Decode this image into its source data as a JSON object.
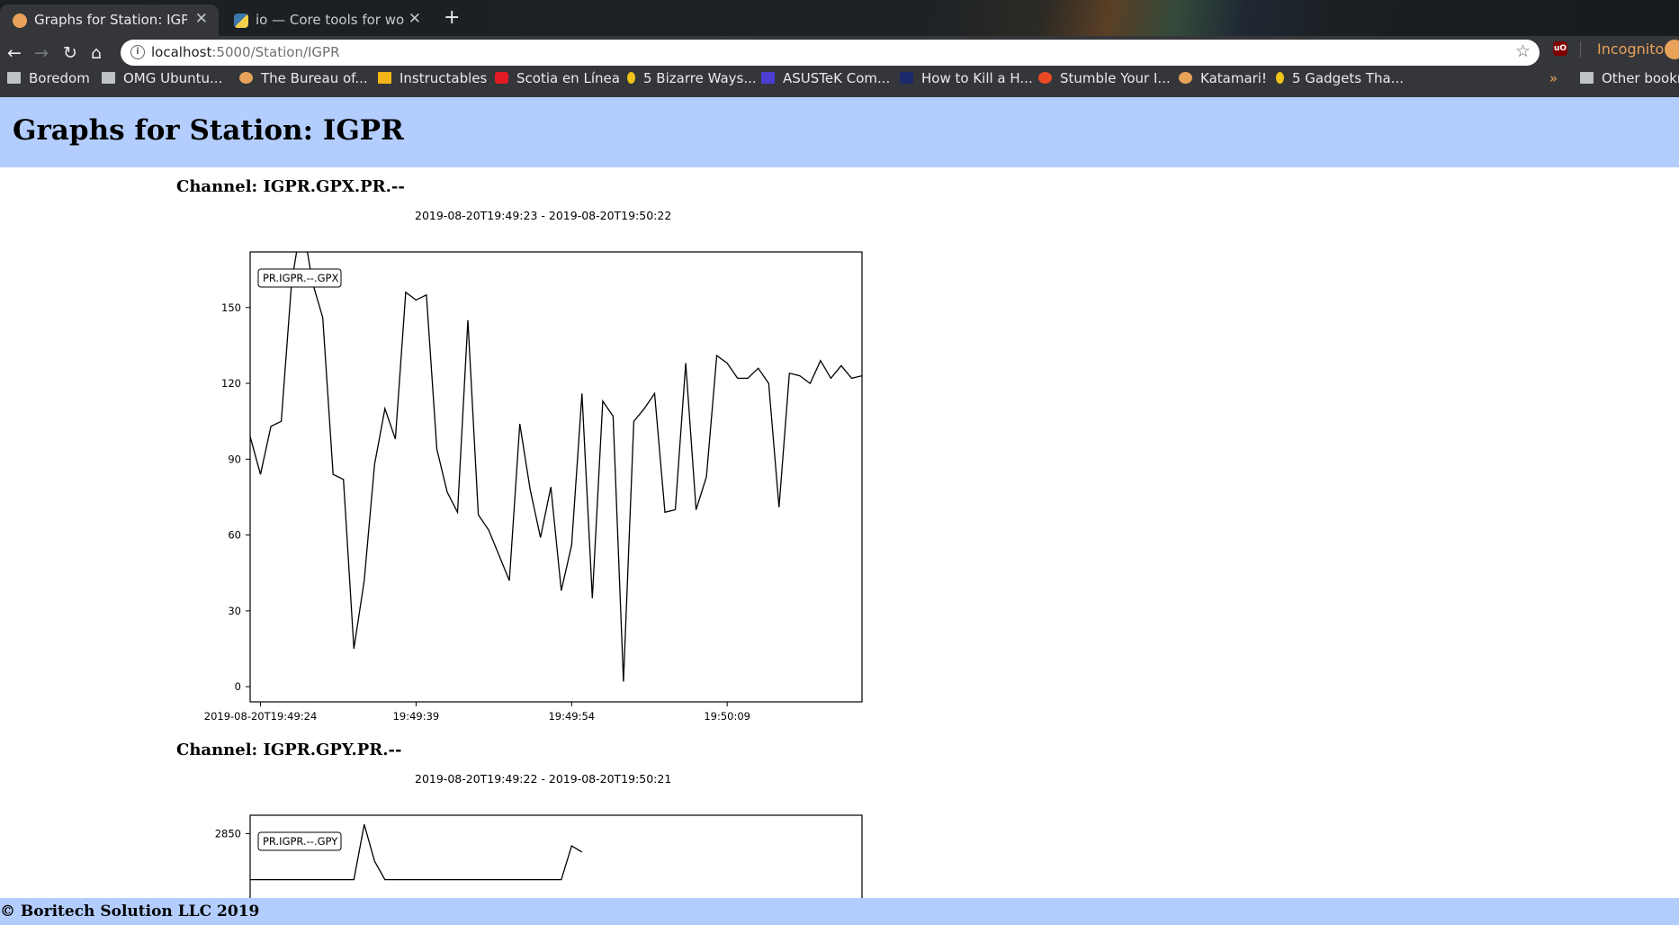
{
  "browser": {
    "tabs": [
      {
        "title": "Graphs for Station: IGPR",
        "active": true
      },
      {
        "title": "io — Core tools for workin",
        "active": false
      }
    ],
    "url_host": "localhost",
    "url_path": ":5000/Station/IGPR",
    "incognito_label": "Incognito",
    "bookmarks": [
      {
        "label": "Boredom",
        "icon": "folder-icon"
      },
      {
        "label": "OMG Ubuntu...",
        "icon": "folder-icon"
      },
      {
        "label": "The Bureau of...",
        "icon": "globe-icon"
      },
      {
        "label": "Instructables",
        "icon": "robot-icon"
      },
      {
        "label": "Scotia en Línea",
        "icon": "scotia-icon"
      },
      {
        "label": "5 Bizarre Ways...",
        "icon": "cracked-icon"
      },
      {
        "label": "ASUSTeK Com...",
        "icon": "asus-icon"
      },
      {
        "label": "How to Kill a H...",
        "icon": "dh-icon"
      },
      {
        "label": "Stumble Your I...",
        "icon": "stumbleupon-icon"
      },
      {
        "label": "Katamari!",
        "icon": "globe-icon"
      },
      {
        "label": "5 Gadgets Tha...",
        "icon": "cracked-icon"
      }
    ],
    "other_bookmarks": "Other bookm"
  },
  "page": {
    "title": "Graphs for Station: IGPR",
    "footer": "© Boritech Solution LLC 2019"
  },
  "channels": [
    {
      "heading": "Channel: IGPR.GPX.PR.--",
      "time_range": "2019-08-20T19:49:23  -  2019-08-20T19:50:22",
      "legend": "PR.IGPR.--.GPX"
    },
    {
      "heading": "Channel: IGPR.GPY.PR.--",
      "time_range": "2019-08-20T19:49:22  -  2019-08-20T19:50:21",
      "legend": "PR.IGPR.--.GPY"
    }
  ],
  "chart_data": [
    {
      "type": "line",
      "legend": [
        "PR.IGPR.--.GPX"
      ],
      "x_unit": "seconds since 2019-08-20T19:49:23",
      "x_tick_values": [
        1,
        16,
        31,
        46
      ],
      "x_tick_labels": [
        "2019-08-20T19:49:24",
        "19:49:39",
        "19:49:54",
        "19:50:09"
      ],
      "xlim": [
        0,
        59
      ],
      "y_ticks": [
        0,
        30,
        60,
        90,
        120,
        150
      ],
      "ylim": [
        -6,
        172
      ],
      "series": [
        {
          "name": "PR.IGPR.--.GPX",
          "x": [
            0,
            1,
            2,
            3,
            4,
            5,
            6,
            7,
            8,
            9,
            10,
            11,
            12,
            13,
            14,
            15,
            16,
            17,
            18,
            19,
            20,
            21,
            22,
            23,
            24,
            25,
            26,
            27,
            28,
            29,
            30,
            31,
            32,
            33,
            34,
            35,
            36,
            37,
            38,
            39,
            40,
            41,
            42,
            43,
            44,
            45,
            46,
            47,
            48,
            49,
            50,
            51,
            52,
            53,
            54,
            55,
            56,
            57,
            58,
            59
          ],
          "y": [
            99,
            84,
            103,
            105,
            160,
            185,
            160,
            146,
            84,
            82,
            15,
            42,
            88,
            110,
            98,
            156,
            153,
            155,
            94,
            77,
            69,
            145,
            68,
            62,
            52,
            42,
            104,
            78,
            59,
            79,
            38,
            56,
            116,
            35,
            113,
            107,
            2,
            105,
            110,
            116,
            69,
            70,
            128,
            70,
            83,
            131,
            128,
            122,
            122,
            126,
            120,
            71,
            124,
            123,
            120,
            129,
            122,
            127,
            122,
            123
          ]
        }
      ]
    },
    {
      "type": "line",
      "legend": [
        "PR.IGPR.--.GPY"
      ],
      "x_unit": "seconds since 2019-08-20T19:49:22",
      "xlim": [
        0,
        59
      ],
      "y_ticks": [
        2850
      ],
      "series": [
        {
          "name": "PR.IGPR.--.GPY",
          "x": [
            0,
            1,
            2,
            3,
            4,
            5,
            6,
            7,
            8,
            9,
            10,
            11,
            12,
            13,
            14,
            15,
            16,
            17,
            18,
            19,
            20,
            21,
            22,
            23,
            24,
            25,
            26,
            27,
            28,
            29,
            30,
            31,
            32
          ],
          "y": [
            2700,
            2700,
            2700,
            2700,
            2700,
            2700,
            2700,
            2700,
            2700,
            2700,
            2700,
            2880,
            2760,
            2700,
            2700,
            2700,
            2700,
            2700,
            2700,
            2700,
            2700,
            2700,
            2700,
            2700,
            2700,
            2700,
            2700,
            2700,
            2700,
            2700,
            2700,
            2810,
            2790
          ]
        }
      ]
    }
  ]
}
